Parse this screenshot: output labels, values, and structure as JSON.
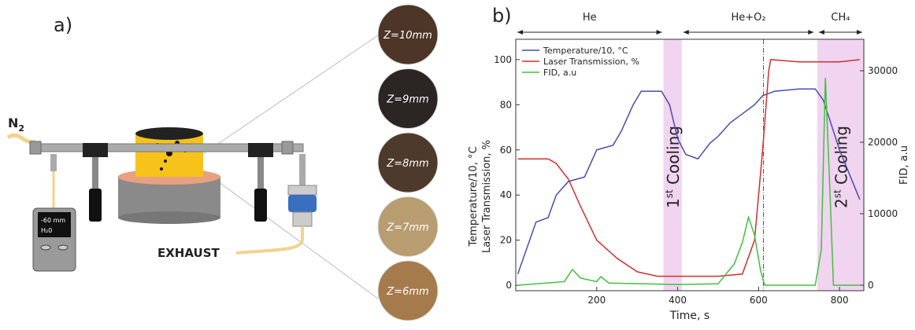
{
  "panel_a": {
    "label": "a)",
    "gas": "N",
    "gas_sub": "2",
    "sensor_line1": "-60 mm",
    "sensor_line2": "H₂0",
    "exhaust": "EXHAUST",
    "samples": [
      {
        "label": "Z=10mm",
        "color": "#4d3527"
      },
      {
        "label": "Z=9mm",
        "color": "#2b2523"
      },
      {
        "label": "Z=8mm",
        "color": "#4e3a2c"
      },
      {
        "label": "Z=7mm",
        "color": "#b89d70"
      },
      {
        "label": "Z=6mm",
        "color": "#a57b4c"
      }
    ]
  },
  "chart_data": {
    "type": "line",
    "panel_label": "b)",
    "xlabel": "Time, s",
    "ylabel": [
      "Temperature/10, °C",
      "Laser Transmission, %"
    ],
    "y2label": "FID, a.u",
    "xlim": [
      0,
      860
    ],
    "xticks": [
      200,
      400,
      600,
      800
    ],
    "ylim": [
      -2.4,
      109
    ],
    "yticks": [
      0,
      20,
      40,
      60,
      80,
      100
    ],
    "y2lim": [
      -770,
      34400
    ],
    "y2ticks": [
      0,
      10000,
      20000,
      30000
    ],
    "legend": "top-left",
    "phases": [
      {
        "label": "He",
        "xlim": [
          0,
          365
        ]
      },
      {
        "label": "He+O₂",
        "xlim": [
          410,
          740
        ]
      },
      {
        "label": "CH₄",
        "xlim": [
          745,
          860
        ]
      }
    ],
    "bands": [
      {
        "xlim": [
          365,
          410
        ],
        "num": "1",
        "sup": "st",
        "text": " Cooling",
        "color": "#f0d4f0"
      },
      {
        "xlim": [
          745,
          860
        ],
        "num": "2",
        "sup": "st",
        "text": " Cooling",
        "color": "#f0d4f0"
      }
    ],
    "vline": 612,
    "series": [
      {
        "name": "Temperature/10, °C",
        "color": "#4a4ab0",
        "x": [
          5,
          50,
          80,
          100,
          130,
          170,
          200,
          240,
          260,
          290,
          310,
          360,
          380,
          400,
          420,
          450,
          480,
          500,
          530,
          560,
          590,
          610,
          640,
          700,
          740,
          760,
          800,
          850
        ],
        "values": [
          5,
          28,
          30,
          40,
          46,
          48,
          60,
          62,
          68,
          80,
          86,
          86,
          80,
          65,
          58,
          56,
          63,
          66,
          72,
          76,
          80,
          84,
          86,
          87,
          87,
          82,
          60,
          38
        ]
      },
      {
        "name": "Laser Transmission, %",
        "color": "#d03030",
        "x": [
          5,
          80,
          100,
          130,
          160,
          200,
          250,
          300,
          350,
          500,
          560,
          590,
          610,
          625,
          630,
          700,
          800,
          850
        ],
        "values": [
          56,
          56,
          54,
          47,
          35,
          20,
          12,
          6,
          4,
          4,
          5,
          20,
          60,
          95,
          100,
          99,
          99,
          100
        ]
      },
      {
        "name": "FID, a.u",
        "color": "#40c040",
        "axis": "y2",
        "x": [
          5,
          120,
          140,
          160,
          200,
          210,
          230,
          400,
          500,
          540,
          560,
          575,
          590,
          605,
          615,
          740,
          755,
          765,
          775,
          785,
          850
        ],
        "values": [
          0,
          500,
          2200,
          1000,
          500,
          1200,
          300,
          100,
          200,
          3000,
          6000,
          9500,
          7000,
          2000,
          0,
          0,
          5000,
          29000,
          15000,
          0,
          0
        ]
      }
    ]
  }
}
